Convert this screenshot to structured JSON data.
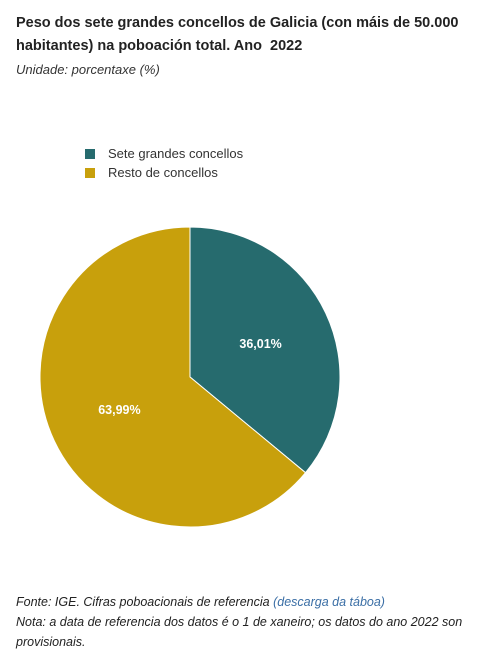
{
  "header": {
    "title": "Peso dos sete grandes concellos de Galicia (con máis de 50.000 habitantes) na poboación total. Ano",
    "year": "2022",
    "unit": "Unidade: porcentaxe (%)"
  },
  "chart_data": {
    "type": "pie",
    "title": "Peso dos sete grandes concellos de Galicia (con máis de 50.000 habitantes) na poboación total. Ano 2022",
    "unit": "Unidade: porcentaxe (%)",
    "legend_position": "top-left",
    "slices": [
      {
        "name": "Sete grandes concellos",
        "value": 36.01,
        "label": "36,01%",
        "color": "#266b6e"
      },
      {
        "name": "Resto de concellos",
        "value": 63.99,
        "label": "63,99%",
        "color": "#c8a00c"
      }
    ]
  },
  "footer": {
    "source_prefix": "Fonte: IGE. Cifras poboacionais de referencia",
    "source_link": "(descarga da táboa)",
    "note": "Nota: a data de referencia dos datos é o 1 de xaneiro; os datos do ano 2022 son provisionais."
  }
}
